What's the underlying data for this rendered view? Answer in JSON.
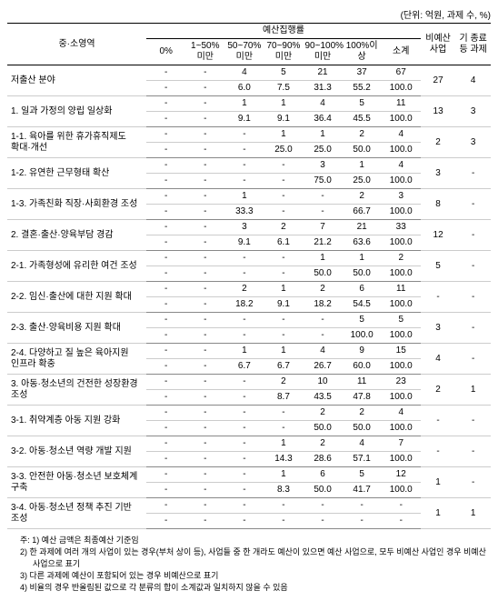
{
  "unit_label": "(단위: 억원, 과제 수, %)",
  "header": {
    "area": "중·소영역",
    "exec_group": "예산집행률",
    "cols": [
      "0%",
      "1~50%미만",
      "50~70%미만",
      "70~90%미만",
      "90~100%미만",
      "100%이상",
      "소계"
    ],
    "non_budget": "비예산사업",
    "ended": "기 종료 등 과제"
  },
  "rows": [
    {
      "label": "저출산 분야",
      "a": [
        "-",
        "-",
        "4",
        "5",
        "21",
        "37",
        "67"
      ],
      "b": [
        "-",
        "-",
        "6.0",
        "7.5",
        "31.3",
        "55.2",
        "100.0"
      ],
      "nb": "27",
      "end": "4"
    },
    {
      "label": "1. 일과 가정의 양립 일상화",
      "a": [
        "-",
        "-",
        "1",
        "1",
        "4",
        "5",
        "11"
      ],
      "b": [
        "-",
        "-",
        "9.1",
        "9.1",
        "36.4",
        "45.5",
        "100.0"
      ],
      "nb": "13",
      "end": "3"
    },
    {
      "label": "1-1. 육아를 위한 휴가휴직제도 확대·개선",
      "a": [
        "-",
        "-",
        "-",
        "1",
        "1",
        "2",
        "4"
      ],
      "b": [
        "-",
        "-",
        "-",
        "25.0",
        "25.0",
        "50.0",
        "100.0"
      ],
      "nb": "2",
      "end": "3"
    },
    {
      "label": "1-2. 유연한 근무형태 확산",
      "a": [
        "-",
        "-",
        "-",
        "-",
        "3",
        "1",
        "4"
      ],
      "b": [
        "-",
        "-",
        "-",
        "-",
        "75.0",
        "25.0",
        "100.0"
      ],
      "nb": "3",
      "end": "-"
    },
    {
      "label": "1-3. 가족친화 직장·사회환경 조성",
      "a": [
        "-",
        "-",
        "1",
        "-",
        "-",
        "2",
        "3"
      ],
      "b": [
        "-",
        "-",
        "33.3",
        "-",
        "-",
        "66.7",
        "100.0"
      ],
      "nb": "8",
      "end": "-"
    },
    {
      "label": "2. 결혼·출산·양육부담 경감",
      "a": [
        "-",
        "-",
        "3",
        "2",
        "7",
        "21",
        "33"
      ],
      "b": [
        "-",
        "-",
        "9.1",
        "6.1",
        "21.2",
        "63.6",
        "100.0"
      ],
      "nb": "12",
      "end": "-"
    },
    {
      "label": "2-1. 가족형성에 유리한 여건 조성",
      "a": [
        "-",
        "-",
        "-",
        "-",
        "1",
        "1",
        "2"
      ],
      "b": [
        "-",
        "-",
        "-",
        "-",
        "50.0",
        "50.0",
        "100.0"
      ],
      "nb": "5",
      "end": "-"
    },
    {
      "label": "2-2. 임신·출산에 대한 지원 확대",
      "a": [
        "-",
        "-",
        "2",
        "1",
        "2",
        "6",
        "11"
      ],
      "b": [
        "-",
        "-",
        "18.2",
        "9.1",
        "18.2",
        "54.5",
        "100.0"
      ],
      "nb": "-",
      "end": "-"
    },
    {
      "label": "2-3. 출산·양육비용 지원 확대",
      "a": [
        "-",
        "-",
        "-",
        "-",
        "-",
        "5",
        "5"
      ],
      "b": [
        "-",
        "-",
        "-",
        "-",
        "-",
        "100.0",
        "100.0"
      ],
      "nb": "3",
      "end": "-"
    },
    {
      "label": "2-4. 다양하고 질 높은 육아지원 인프라 확충",
      "a": [
        "-",
        "-",
        "1",
        "1",
        "4",
        "9",
        "15"
      ],
      "b": [
        "-",
        "-",
        "6.7",
        "6.7",
        "26.7",
        "60.0",
        "100.0"
      ],
      "nb": "4",
      "end": "-"
    },
    {
      "label": "3. 아동·청소년의 건전한 성장환경 조성",
      "a": [
        "-",
        "-",
        "-",
        "2",
        "10",
        "11",
        "23"
      ],
      "b": [
        "-",
        "-",
        "-",
        "8.7",
        "43.5",
        "47.8",
        "100.0"
      ],
      "nb": "2",
      "end": "1"
    },
    {
      "label": "3-1. 취약계층 아동 지원 강화",
      "a": [
        "-",
        "-",
        "-",
        "-",
        "2",
        "2",
        "4"
      ],
      "b": [
        "-",
        "-",
        "-",
        "-",
        "50.0",
        "50.0",
        "100.0"
      ],
      "nb": "-",
      "end": "-"
    },
    {
      "label": "3-2. 아동·청소년 역량 개발 지원",
      "a": [
        "-",
        "-",
        "-",
        "1",
        "2",
        "4",
        "7"
      ],
      "b": [
        "-",
        "-",
        "-",
        "14.3",
        "28.6",
        "57.1",
        "100.0"
      ],
      "nb": "-",
      "end": "-"
    },
    {
      "label": "3-3. 안전한 아동·청소년 보호체계 구축",
      "a": [
        "-",
        "-",
        "-",
        "1",
        "6",
        "5",
        "12"
      ],
      "b": [
        "-",
        "-",
        "-",
        "8.3",
        "50.0",
        "41.7",
        "100.0"
      ],
      "nb": "1",
      "end": "-"
    },
    {
      "label": "3-4. 아동·청소년 정책 추진 기반 조성",
      "a": [
        "-",
        "-",
        "-",
        "-",
        "-",
        "-",
        "-"
      ],
      "b": [
        "-",
        "-",
        "-",
        "-",
        "-",
        "-",
        "-"
      ],
      "nb": "1",
      "end": "1"
    }
  ],
  "footnotes": [
    "주: 1) 예산 금액은 최종예산 기준임",
    "2) 한 과제에 여러 개의 사업이 있는 경우(부처 상이 등), 사업들 중 한 개라도 예산이 있으면 예산 사업으로, 모두 비예산 사업인 경우 비예산 사업으로 표기",
    "3) 다른 과제에 예산이 포함되어 있는 경우 비예산으로 표기",
    "4) 비율의 경우 반올림된 값으로 각 분류의 합이 소계값과 일치하지 않을 수 있음"
  ]
}
